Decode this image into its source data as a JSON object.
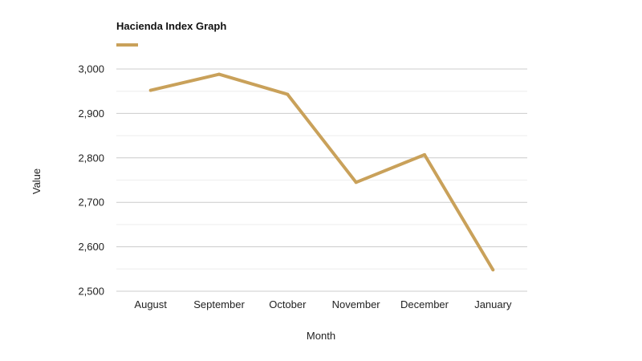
{
  "chart_data": {
    "type": "line",
    "title": "",
    "xlabel": "Month",
    "ylabel": "Value",
    "categories": [
      "August",
      "September",
      "October",
      "November",
      "December",
      "January"
    ],
    "series": [
      {
        "name": "Hacienda Index Graph",
        "color": "#C9A15A",
        "values": [
          2952,
          2988,
          2943,
          2745,
          2807,
          2548
        ]
      }
    ],
    "ylim": [
      2500,
      3000
    ],
    "yticks": [
      2500,
      2600,
      2700,
      2800,
      2900,
      3000
    ],
    "ytick_labels": [
      "2,500",
      "2,600",
      "2,700",
      "2,800",
      "2,900",
      "3,000"
    ],
    "grid": true,
    "legend_position": "top-left"
  }
}
